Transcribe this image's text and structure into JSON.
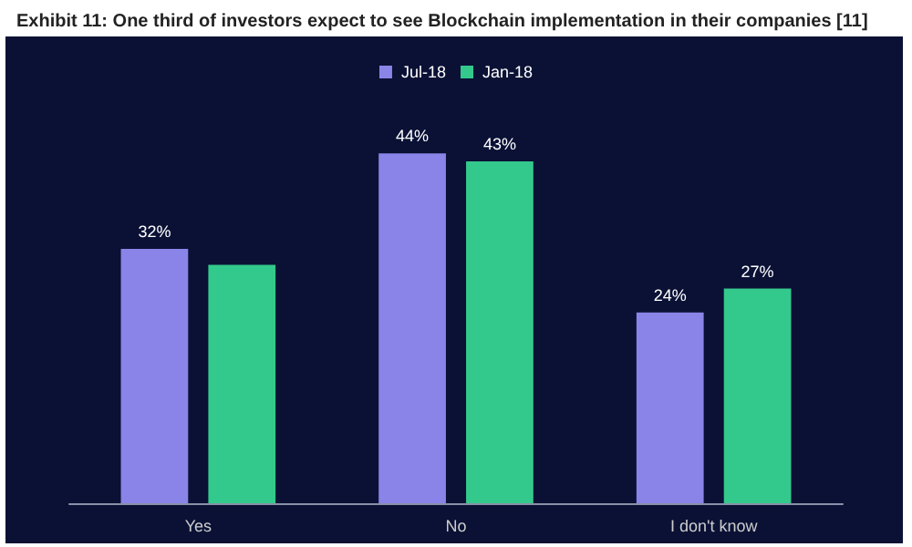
{
  "chart_data": {
    "type": "bar",
    "title": "Exhibit 11: One third of investors expect to see Blockchain implementation in their companies [11]",
    "categories": [
      "Yes",
      "No",
      "I don't know"
    ],
    "series": [
      {
        "name": "Jul-18",
        "color": "#8a84e8",
        "values": [
          32,
          44,
          24
        ],
        "value_labels": [
          "32%",
          "44%",
          "24%"
        ]
      },
      {
        "name": "Jan-18",
        "color": "#34c98c",
        "values": [
          30,
          43,
          27
        ],
        "value_labels": [
          null,
          "43%",
          "27%"
        ]
      }
    ],
    "legend": "top"
  }
}
